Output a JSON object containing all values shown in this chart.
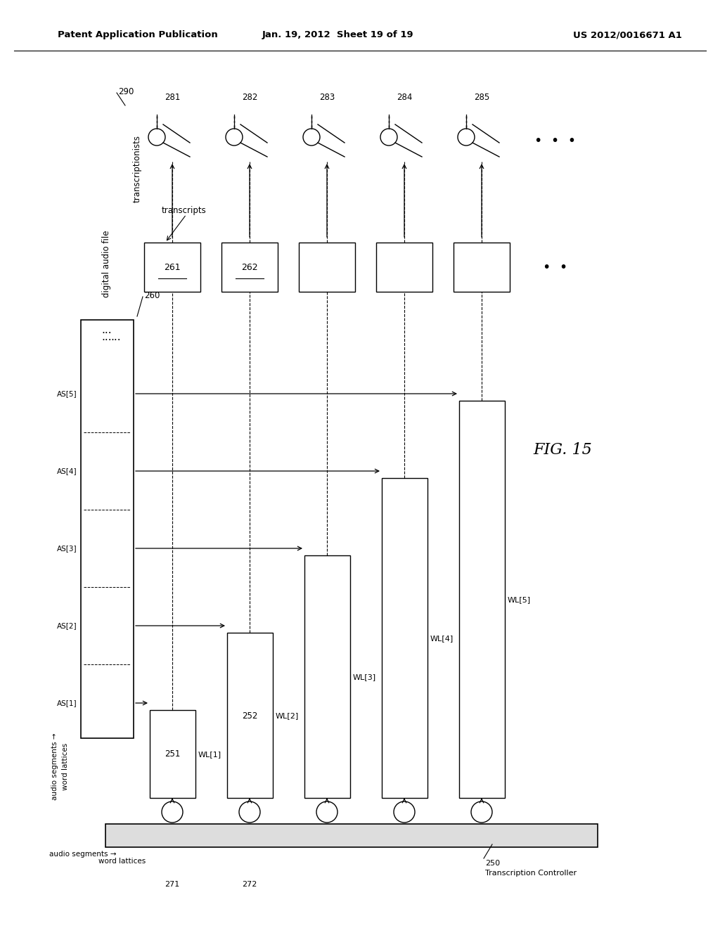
{
  "background_color": "#ffffff",
  "header_left": "Patent Application Publication",
  "header_center": "Jan. 19, 2012  Sheet 19 of 19",
  "header_right": "US 2012/0016671 A1",
  "fig_label": "FIG. 15",
  "line_color": "#000000",
  "box_fill": "#ffffff",
  "box_edge": "#000000",
  "transcriptionist_labels": [
    "281",
    "282",
    "283",
    "284",
    "285"
  ],
  "as_labels": [
    "AS[1]",
    "AS[2]",
    "AS[3]",
    "AS[4]",
    "AS[5]"
  ],
  "wl_labels": [
    "WL[1]",
    "WL[2]",
    "WL[3]",
    "WL[4]",
    "WL[5]"
  ],
  "wl_box_labels": [
    "251",
    "252"
  ],
  "transcript_box_labels": [
    "261",
    "262"
  ]
}
